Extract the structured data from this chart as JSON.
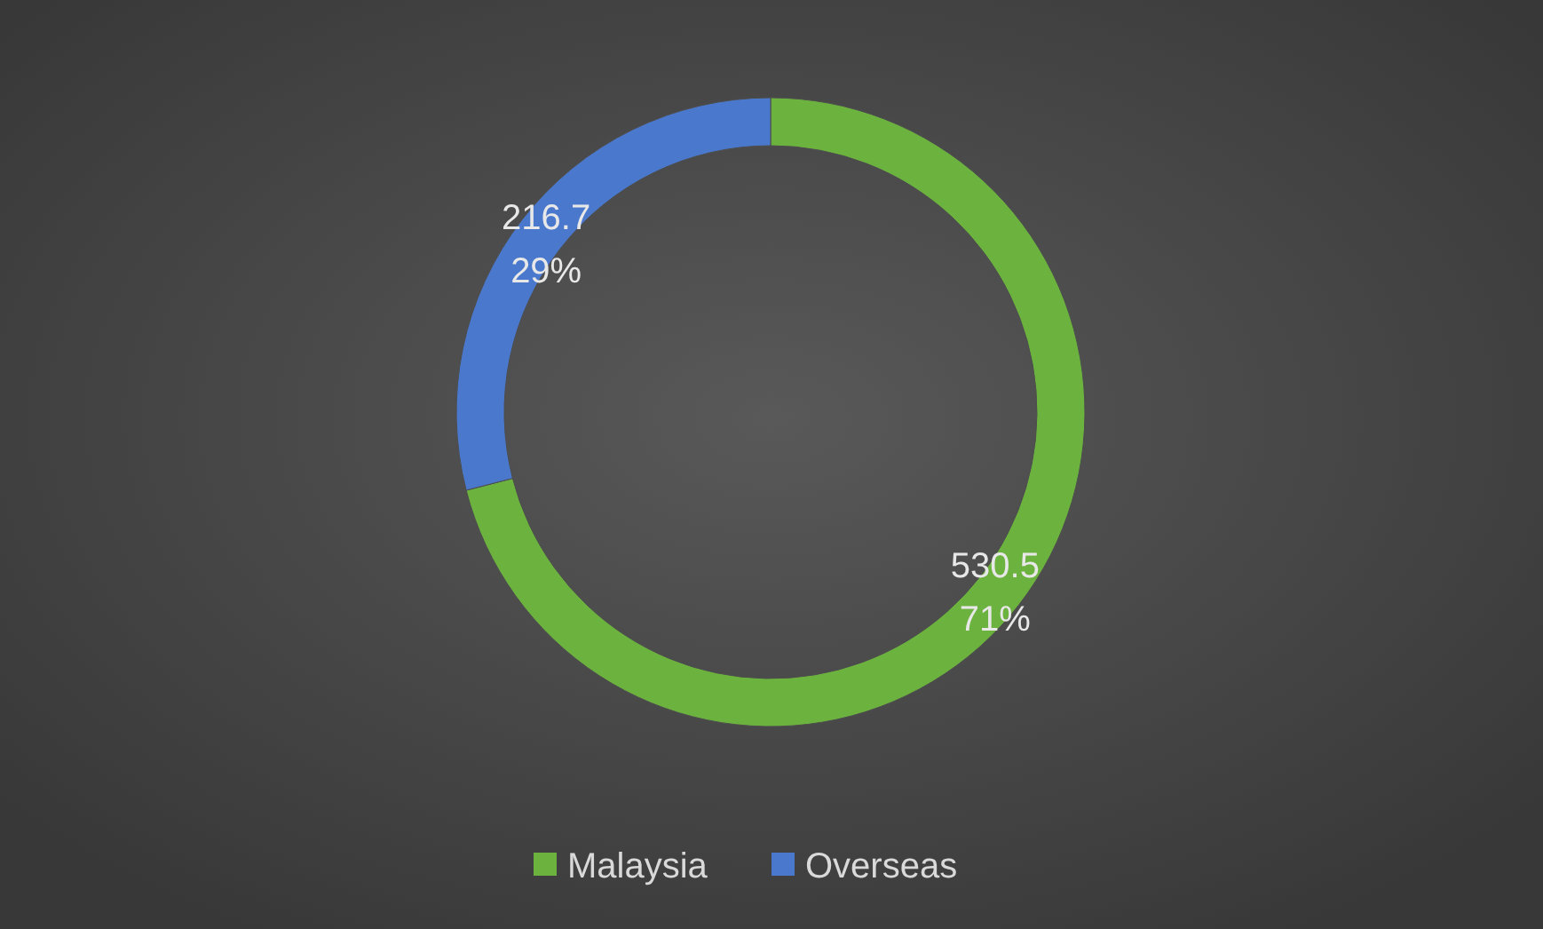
{
  "chart_data": {
    "type": "donut",
    "categories": [
      "Malaysia",
      "Overseas"
    ],
    "values": [
      530.5,
      216.7
    ],
    "colors": [
      "#6cb23e",
      "#4a78cc"
    ],
    "value_labels": [
      "530.5\n71%",
      "216.7\n29%"
    ],
    "legend": "bottom"
  }
}
